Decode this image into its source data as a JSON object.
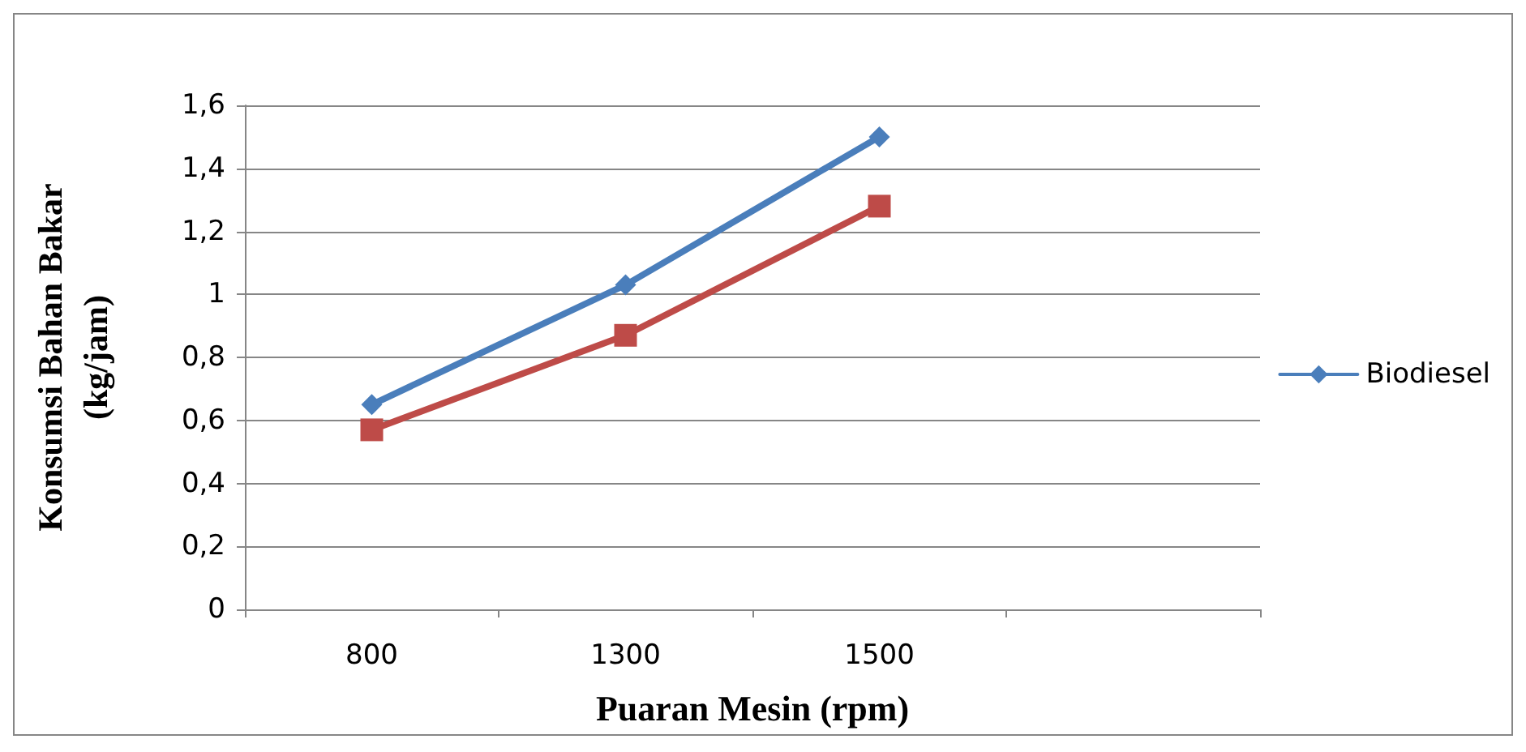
{
  "chart_data": {
    "type": "line",
    "xlabel": "Puaran Mesin (rpm)",
    "ylabel": "Konsumsi Bahan Bakar\n(kg/jam)",
    "categories": [
      "800",
      "1300",
      "1500",
      null
    ],
    "series": [
      {
        "name": "Biodiesel",
        "color": "#4a7ebb",
        "marker": "diamond",
        "values": [
          0.65,
          1.03,
          1.5,
          null
        ]
      },
      {
        "color": "#be4b48",
        "marker": "square",
        "values": [
          0.57,
          0.87,
          1.28,
          null
        ]
      }
    ],
    "ylim": [
      0,
      1.6
    ],
    "yticks": [
      0,
      {
        "value": 0.2,
        "label": "0,2"
      },
      {
        "value": 0.4,
        "label": "0,4"
      },
      {
        "value": 0.6,
        "label": "0,6"
      },
      {
        "value": 0.8,
        "label": "0,8"
      },
      1,
      {
        "value": 1.2,
        "label": "1,2"
      },
      {
        "value": 1.4,
        "label": "1,4"
      },
      {
        "value": 1.6,
        "label": "1,6"
      }
    ],
    "grid": "y",
    "legend": "right",
    "line_style": "solid"
  }
}
